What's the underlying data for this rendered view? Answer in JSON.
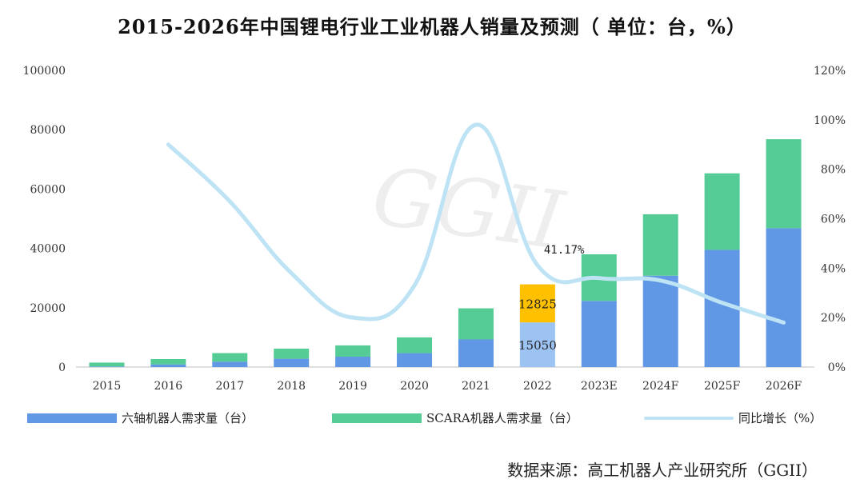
{
  "title": "2015-2026年中国锂电行业工业机器人销量及预测（ 单位：台，%）",
  "source": "数据来源：高工机器人产业研究所（GGII）",
  "watermark": "GGII",
  "colors": {
    "six_axis": "#6198e6",
    "scara": "#55cc96",
    "line": "#bde3f5",
    "highlight_top": "#ffc000",
    "highlight_bottom": "#9dc3f2"
  },
  "legend": [
    {
      "label": "六轴机器人需求量（台）",
      "color": "#6198e6",
      "kind": "bar"
    },
    {
      "label": "SCARA机器人需求量（台）",
      "color": "#55cc96",
      "kind": "bar"
    },
    {
      "label": "同比增长（%）",
      "color": "#bde3f5",
      "kind": "line"
    }
  ],
  "chart_data": {
    "type": "bar",
    "stacked": true,
    "categories": [
      "2015",
      "2016",
      "2017",
      "2018",
      "2019",
      "2020",
      "2021",
      "2022",
      "2023E",
      "2024F",
      "2025F",
      "2026F"
    ],
    "y_left": {
      "min": 0,
      "max": 100000,
      "ticks": [
        "0",
        "20000",
        "40000",
        "60000",
        "80000",
        "100000"
      ]
    },
    "y_right": {
      "min": 0,
      "max": 120,
      "ticks": [
        "0%",
        "20%",
        "40%",
        "60%",
        "80%",
        "100%",
        "120%"
      ]
    },
    "series": [
      {
        "name": "六轴机器人需求量（台）",
        "values": [
          200,
          900,
          1800,
          2800,
          3500,
          4700,
          9300,
          15050,
          22300,
          30800,
          39500,
          46800
        ]
      },
      {
        "name": "SCARA机器人需求量（台）",
        "values": [
          1300,
          1800,
          2900,
          3400,
          3800,
          5300,
          10500,
          12825,
          15700,
          20700,
          25800,
          30000
        ]
      },
      {
        "name": "同比增长（%）",
        "axis": "right",
        "values": [
          null,
          90,
          67,
          38,
          20,
          33,
          98,
          41.17,
          36,
          35,
          26,
          18
        ]
      }
    ],
    "data_labels": [
      {
        "category": "2022",
        "series": "SCARA机器人需求量（台）",
        "text": "12825"
      },
      {
        "category": "2022",
        "series": "六轴机器人需求量（台）",
        "text": "15050"
      }
    ],
    "annotations": [
      {
        "category": "2022",
        "text": "41.17%"
      }
    ],
    "grid": false,
    "legend_position": "bottom"
  }
}
